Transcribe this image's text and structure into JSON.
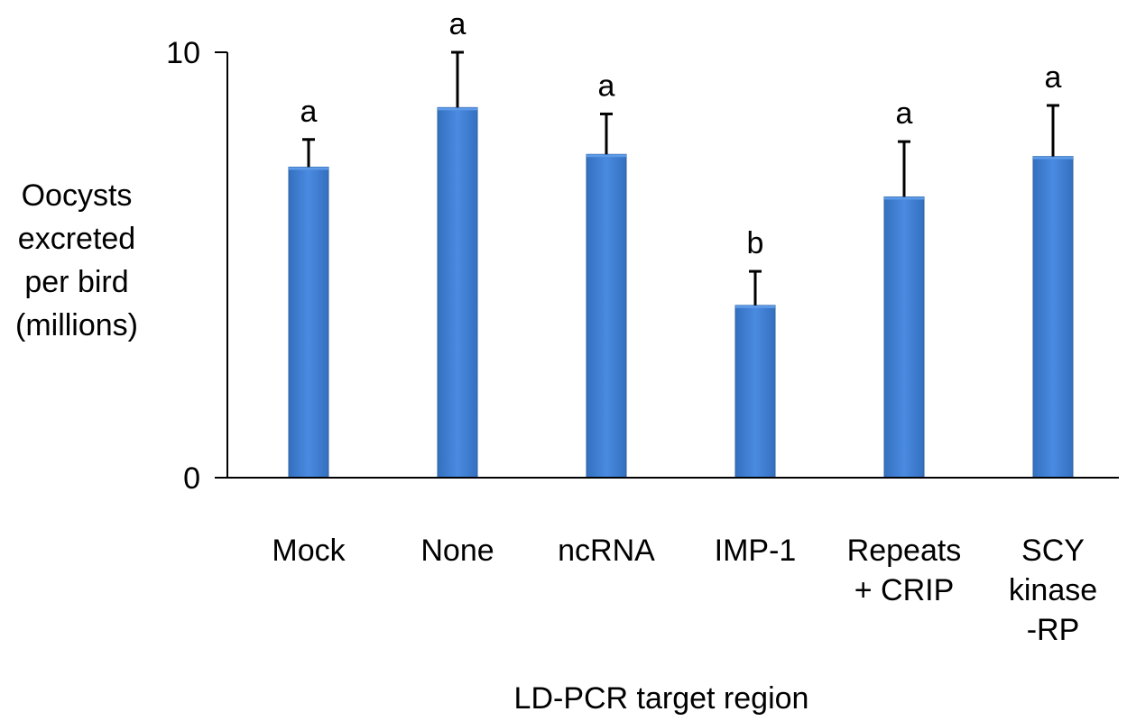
{
  "chart_data": {
    "type": "bar",
    "title": "",
    "xlabel": "LD-PCR target region",
    "ylabel_lines": [
      "Oocysts",
      "excreted",
      "per bird",
      "(millions)"
    ],
    "categories": [
      [
        "Mock"
      ],
      [
        "None"
      ],
      [
        "ncRNA"
      ],
      [
        "IMP-1"
      ],
      [
        "Repeats",
        "+ CRIP"
      ],
      [
        "SCY",
        "kinase",
        "-RP"
      ]
    ],
    "values": [
      7.3,
      8.7,
      7.6,
      4.05,
      6.6,
      7.55
    ],
    "errors": [
      0.65,
      1.3,
      0.95,
      0.8,
      1.3,
      1.2
    ],
    "significance_labels": [
      "a",
      "a",
      "a",
      "b",
      "a",
      "a"
    ],
    "ylim": [
      0,
      10
    ],
    "yticks": [
      0,
      10
    ],
    "bar_color": "#3f7fd0",
    "bar_edge_color": "#2e5f9e",
    "grid": false,
    "legend": false
  }
}
